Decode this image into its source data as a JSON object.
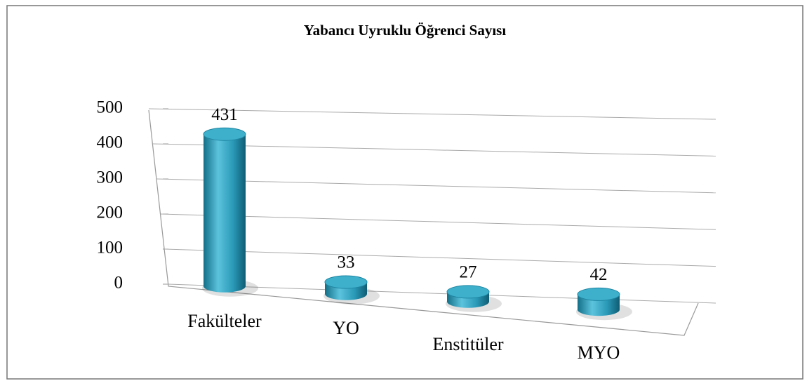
{
  "chart_data": {
    "type": "bar",
    "title": "Yabancı Uyruklu  Öğrenci Sayısı",
    "categories": [
      "Fakülteler",
      "YO",
      "Enstitüler",
      "MYO"
    ],
    "values": [
      431,
      33,
      27,
      42
    ],
    "color": "#2a9ab8",
    "ylim": [
      0,
      500
    ],
    "yticks": [
      0,
      100,
      200,
      300,
      400,
      500
    ],
    "grid": true
  }
}
